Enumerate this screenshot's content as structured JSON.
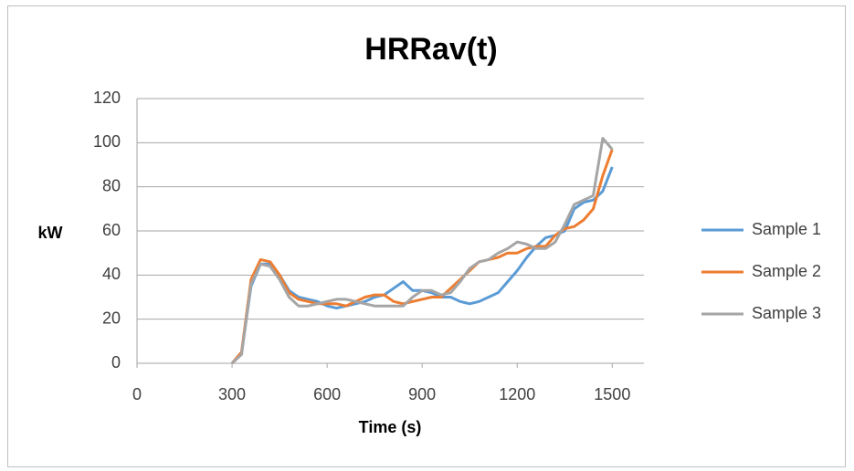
{
  "chart_data": {
    "type": "line",
    "title": "HRRav(t)",
    "x_label": "Time (s)",
    "y_label": "kW",
    "x": [
      300,
      330,
      360,
      390,
      420,
      450,
      480,
      510,
      540,
      570,
      600,
      630,
      660,
      690,
      720,
      750,
      780,
      810,
      840,
      870,
      900,
      930,
      960,
      990,
      1020,
      1050,
      1080,
      1110,
      1140,
      1170,
      1200,
      1230,
      1260,
      1290,
      1320,
      1350,
      1380,
      1410,
      1440,
      1470,
      1500
    ],
    "series": [
      {
        "name": "Sample 1",
        "color": "#5b9bd5",
        "values": [
          0,
          5,
          35,
          45,
          45,
          40,
          33,
          30,
          29,
          28,
          26,
          25,
          26,
          27,
          28,
          30,
          31,
          34,
          37,
          33,
          33,
          32,
          30,
          30,
          28,
          27,
          28,
          30,
          32,
          37,
          42,
          48,
          53,
          57,
          58,
          60,
          70,
          73,
          74,
          78,
          89
        ]
      },
      {
        "name": "Sample 2",
        "color": "#ed7d31",
        "values": [
          0,
          5,
          38,
          47,
          46,
          40,
          32,
          29,
          28,
          27,
          27,
          27,
          26,
          28,
          30,
          31,
          31,
          28,
          27,
          28,
          29,
          30,
          30,
          34,
          38,
          42,
          46,
          47,
          48,
          50,
          50,
          52,
          53,
          53,
          58,
          61,
          62,
          65,
          70,
          85,
          97
        ]
      },
      {
        "name": "Sample 3",
        "color": "#a5a5a5",
        "values": [
          0,
          4,
          36,
          45,
          44,
          38,
          30,
          26,
          26,
          27,
          28,
          29,
          29,
          28,
          27,
          26,
          26,
          26,
          26,
          30,
          33,
          33,
          31,
          32,
          37,
          43,
          46,
          47,
          50,
          52,
          55,
          54,
          52,
          52,
          55,
          63,
          72,
          74,
          76,
          102,
          97
        ]
      }
    ],
    "xlim": [
      0,
      1600
    ],
    "xticks": [
      0,
      300,
      600,
      900,
      1200,
      1500
    ],
    "ylim": [
      0,
      120
    ],
    "yticks": [
      0,
      20,
      40,
      60,
      80,
      100,
      120
    ],
    "grid": true,
    "legend": "right"
  }
}
